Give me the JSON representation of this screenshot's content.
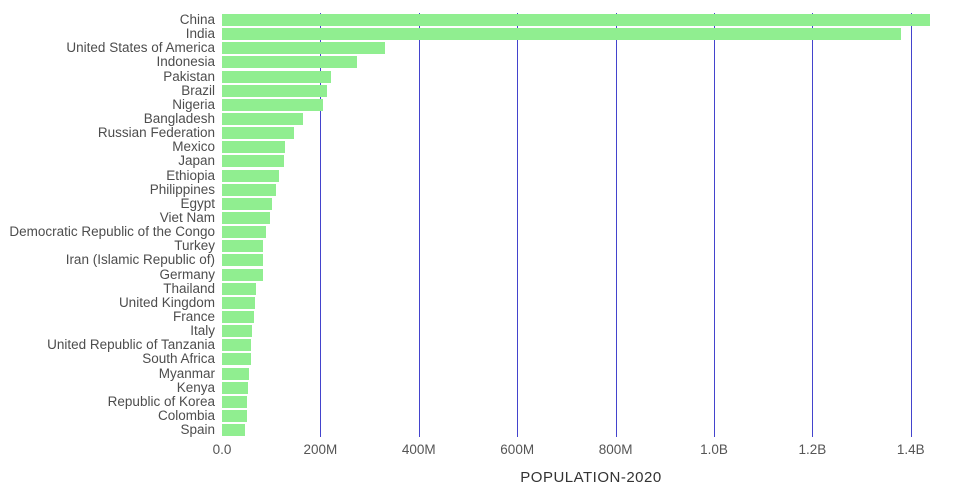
{
  "chart_data": {
    "type": "bar",
    "orientation": "horizontal",
    "title": "",
    "xlabel": "POPULATION-2020",
    "ylabel": "",
    "xlim": [
      0,
      1500000000
    ],
    "grid": true,
    "legend": "none",
    "categories": [
      "China",
      "India",
      "United States of America",
      "Indonesia",
      "Pakistan",
      "Brazil",
      "Nigeria",
      "Bangladesh",
      "Russian Federation",
      "Mexico",
      "Japan",
      "Ethiopia",
      "Philippines",
      "Egypt",
      "Viet Nam",
      "Democratic Republic of the Congo",
      "Turkey",
      "Iran (Islamic Republic of)",
      "Germany",
      "Thailand",
      "United Kingdom",
      "France",
      "Italy",
      "United Republic of Tanzania",
      "South Africa",
      "Myanmar",
      "Kenya",
      "Republic of Korea",
      "Colombia",
      "Spain"
    ],
    "values": [
      1439323776,
      1380004385,
      331002651,
      273523615,
      220892340,
      212559417,
      206139589,
      164689383,
      145934462,
      128932753,
      126476461,
      114963588,
      109581078,
      102334404,
      97338579,
      89561403,
      84339067,
      83992949,
      83783942,
      69799978,
      67886011,
      65273511,
      60461826,
      59734218,
      59308690,
      54409800,
      53771296,
      51269185,
      50882891,
      46754778
    ],
    "tick_values": [
      0,
      200000000,
      400000000,
      600000000,
      800000000,
      1000000000,
      1200000000,
      1400000000
    ],
    "tick_labels": [
      "0.0",
      "200M",
      "400M",
      "600M",
      "800M",
      "1.0B",
      "1.2B",
      "1.4B"
    ],
    "colors": {
      "bar": "#90ee90",
      "grid": "#4343cd",
      "label": "#4d4d4d",
      "tick": "#555555",
      "axis_title": "#333333",
      "background": "#ffffff"
    }
  }
}
